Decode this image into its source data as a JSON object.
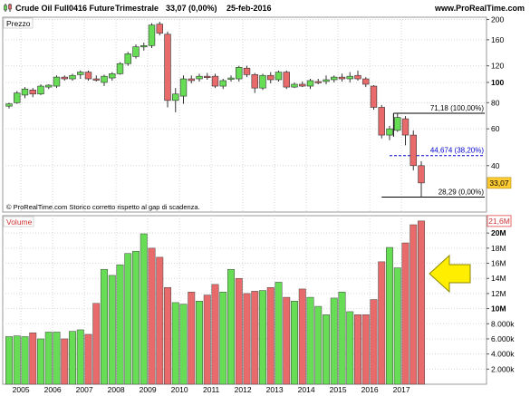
{
  "header": {
    "instrument": "Crude Oil Full0416 Future",
    "period": "Trimestrale",
    "last": "33,07 (0,00%)",
    "date": "25-feb-2016",
    "site": "www.ProRealTime.com"
  },
  "colors": {
    "up": "#66dd55",
    "down": "#e86a6a",
    "outline": "#333333",
    "grid": "#d8d8d8",
    "fib_solid": "#000000",
    "fib_dashed": "#0000cc",
    "arrow_fill": "#ffee00",
    "arrow_stroke": "#888800",
    "price_tag": "#ffcc33"
  },
  "chart_data": [
    {
      "type": "candlestick",
      "panel_label": "Prezzo",
      "price_axis_ticks": [
        "200",
        "160",
        "120",
        "100",
        "80",
        "60",
        "40"
      ],
      "y_scale": "log",
      "ylim": [
        24,
        205
      ],
      "year_labels": [
        "2005",
        "2006",
        "2007",
        "2008",
        "2009",
        "2010",
        "2011",
        "2012",
        "2013",
        "2014",
        "2015",
        "2016",
        "2017"
      ],
      "note": "© ProRealTime.com  Storico corretto rispetto al gap di scadenza.",
      "last_price_tag": "33,07",
      "candles": [
        {
          "period": "2005 Q1",
          "open": 77,
          "high": 80,
          "low": 75,
          "close": 79
        },
        {
          "period": "2005 Q2",
          "open": 80,
          "high": 91,
          "low": 79,
          "close": 89
        },
        {
          "period": "2005 Q3",
          "open": 87,
          "high": 95,
          "low": 84,
          "close": 93
        },
        {
          "period": "2005 Q4",
          "open": 92,
          "high": 94,
          "low": 85,
          "close": 88
        },
        {
          "period": "2006 Q1",
          "open": 88,
          "high": 98,
          "low": 87,
          "close": 96
        },
        {
          "period": "2006 Q2",
          "open": 95,
          "high": 98,
          "low": 93,
          "close": 97
        },
        {
          "period": "2006 Q3",
          "open": 96,
          "high": 108,
          "low": 94,
          "close": 106
        },
        {
          "period": "2006 Q4",
          "open": 106,
          "high": 108,
          "low": 102,
          "close": 104
        },
        {
          "period": "2007 Q1",
          "open": 104,
          "high": 110,
          "low": 102,
          "close": 108
        },
        {
          "period": "2007 Q2",
          "open": 109,
          "high": 114,
          "low": 104,
          "close": 112
        },
        {
          "period": "2007 Q3",
          "open": 112,
          "high": 114,
          "low": 102,
          "close": 104
        },
        {
          "period": "2007 Q4",
          "open": 104,
          "high": 108,
          "low": 101,
          "close": 103
        },
        {
          "period": "2008 Q1",
          "open": 100,
          "high": 109,
          "low": 96,
          "close": 107
        },
        {
          "period": "2008 Q2",
          "open": 105,
          "high": 112,
          "low": 102,
          "close": 110
        },
        {
          "period": "2008 Q3",
          "open": 110,
          "high": 125,
          "low": 109,
          "close": 123
        },
        {
          "period": "2008 Q4",
          "open": 123,
          "high": 140,
          "low": 120,
          "close": 137
        },
        {
          "period": "2009 Q1",
          "open": 133,
          "high": 152,
          "low": 130,
          "close": 148
        },
        {
          "period": "2009 Q2",
          "open": 148,
          "high": 155,
          "low": 142,
          "close": 150
        },
        {
          "period": "2009 Q3",
          "open": 150,
          "high": 192,
          "low": 146,
          "close": 188
        },
        {
          "period": "2009 Q4",
          "open": 190,
          "high": 195,
          "low": 168,
          "close": 172
        },
        {
          "period": "2010 Q1",
          "open": 170,
          "high": 175,
          "low": 76,
          "close": 82
        },
        {
          "period": "2010 Q2",
          "open": 82,
          "high": 94,
          "low": 72,
          "close": 88
        },
        {
          "period": "2010 Q3",
          "open": 86,
          "high": 108,
          "low": 79,
          "close": 104
        },
        {
          "period": "2010 Q4",
          "open": 104,
          "high": 108,
          "low": 99,
          "close": 102
        },
        {
          "period": "2011 Q1",
          "open": 104,
          "high": 110,
          "low": 101,
          "close": 107
        },
        {
          "period": "2011 Q2",
          "open": 107,
          "high": 111,
          "low": 103,
          "close": 106
        },
        {
          "period": "2011 Q3",
          "open": 107,
          "high": 110,
          "low": 94,
          "close": 96
        },
        {
          "period": "2011 Q4",
          "open": 96,
          "high": 104,
          "low": 93,
          "close": 102
        },
        {
          "period": "2012 Q1",
          "open": 104,
          "high": 108,
          "low": 101,
          "close": 105
        },
        {
          "period": "2012 Q2",
          "open": 104,
          "high": 120,
          "low": 101,
          "close": 118
        },
        {
          "period": "2012 Q3",
          "open": 117,
          "high": 120,
          "low": 106,
          "close": 109
        },
        {
          "period": "2012 Q4",
          "open": 109,
          "high": 111,
          "low": 89,
          "close": 94
        },
        {
          "period": "2013 Q1",
          "open": 94,
          "high": 110,
          "low": 92,
          "close": 108
        },
        {
          "period": "2013 Q2",
          "open": 108,
          "high": 112,
          "low": 99,
          "close": 103
        },
        {
          "period": "2013 Q3",
          "open": 103,
          "high": 114,
          "low": 101,
          "close": 112
        },
        {
          "period": "2013 Q4",
          "open": 112,
          "high": 114,
          "low": 93,
          "close": 95
        },
        {
          "period": "2014 Q1",
          "open": 95,
          "high": 100,
          "low": 94,
          "close": 98
        },
        {
          "period": "2014 Q2",
          "open": 98,
          "high": 101,
          "low": 95,
          "close": 96
        },
        {
          "period": "2014 Q3",
          "open": 96,
          "high": 104,
          "low": 93,
          "close": 102
        },
        {
          "period": "2014 Q4",
          "open": 101,
          "high": 104,
          "low": 98,
          "close": 100
        },
        {
          "period": "2015 Q1",
          "open": 101,
          "high": 108,
          "low": 98,
          "close": 103
        },
        {
          "period": "2015 Q2",
          "open": 103,
          "high": 108,
          "low": 100,
          "close": 106
        },
        {
          "period": "2015 Q3",
          "open": 106,
          "high": 110,
          "low": 101,
          "close": 104
        },
        {
          "period": "2015 Q4",
          "open": 104,
          "high": 112,
          "low": 100,
          "close": 107
        },
        {
          "period": "2016 Q1",
          "open": 108,
          "high": 114,
          "low": 102,
          "close": 104
        },
        {
          "period": "2016 Q2",
          "open": 104,
          "high": 106,
          "low": 95,
          "close": 98
        },
        {
          "period": "2016 Q3",
          "open": 96,
          "high": 97,
          "low": 74,
          "close": 76
        },
        {
          "period": "2016 Q4",
          "open": 76,
          "high": 78,
          "low": 54,
          "close": 56
        },
        {
          "period": "2017 Q1",
          "open": 56,
          "high": 62,
          "low": 53,
          "close": 60
        },
        {
          "period": "2017 Q2",
          "open": 59,
          "high": 71.18,
          "low": 58,
          "close": 68
        },
        {
          "period": "2017 Q3",
          "open": 67,
          "high": 69,
          "low": 50,
          "close": 56
        },
        {
          "period": "2017 Q4",
          "open": 56,
          "high": 59,
          "low": 38,
          "close": 40
        },
        {
          "period": "2018 Q1",
          "open": 40,
          "high": 42,
          "low": 28.29,
          "close": 33.07
        }
      ],
      "levels": [
        {
          "value": 71.18,
          "label": "71,18 (100,00%)",
          "style": "solid"
        },
        {
          "value": 44.674,
          "label": "44,674 (38,20%)",
          "style": "dashed"
        },
        {
          "value": 28.29,
          "label": "28,29 (0,00%)",
          "style": "solid"
        }
      ]
    },
    {
      "type": "bar",
      "panel_label": "Volume",
      "volume_axis_ticks": [
        "20M",
        "18M",
        "16M",
        "14M",
        "12M",
        "10M",
        "8.000k",
        "6.000k",
        "4.000k",
        "2.000k"
      ],
      "ylim": [
        0,
        22300000
      ],
      "last_volume_tag": "21,6M",
      "annotation": "yellow-arrow-pointing-left",
      "values": [
        6300000,
        6400000,
        6300000,
        6800000,
        6000000,
        6900000,
        6900000,
        6000000,
        7000000,
        7200000,
        6600000,
        10700000,
        15200000,
        14400000,
        15800000,
        17300000,
        17600000,
        19900000,
        18000000,
        16800000,
        12800000,
        10800000,
        10600000,
        12200000,
        11000000,
        11800000,
        13200000,
        12200000,
        15200000,
        14000000,
        12000000,
        12300000,
        12400000,
        12800000,
        13500000,
        11500000,
        11000000,
        12600000,
        11500000,
        10300000,
        9200000,
        11400000,
        12200000,
        9600000,
        9200000,
        9200000,
        11200000,
        16200000,
        18100000,
        15400000,
        18700000,
        21100000,
        21600000
      ],
      "directions": [
        "up",
        "up",
        "up",
        "down",
        "up",
        "up",
        "up",
        "down",
        "up",
        "up",
        "down",
        "down",
        "up",
        "up",
        "up",
        "up",
        "up",
        "up",
        "down",
        "down",
        "down",
        "up",
        "up",
        "down",
        "up",
        "down",
        "down",
        "up",
        "up",
        "down",
        "down",
        "down",
        "up",
        "down",
        "up",
        "down",
        "up",
        "down",
        "up",
        "up",
        "up",
        "up",
        "up",
        "up",
        "down",
        "down",
        "down",
        "down",
        "up",
        "up",
        "down",
        "down",
        "down"
      ]
    }
  ]
}
